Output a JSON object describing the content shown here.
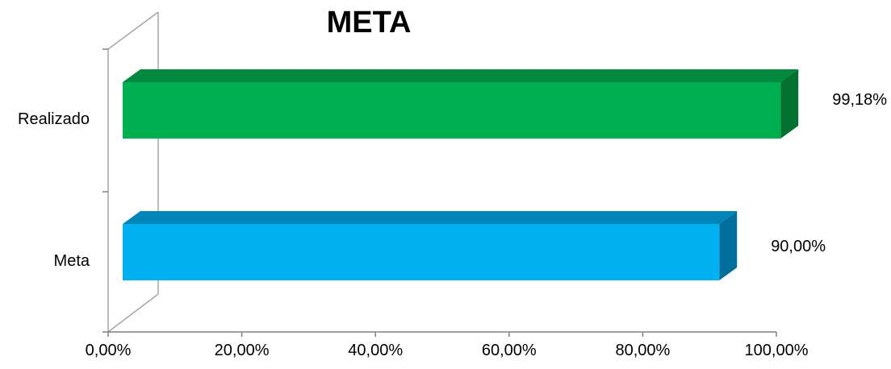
{
  "chart_data": {
    "type": "bar",
    "orientation": "horizontal",
    "three_d": true,
    "title": "META",
    "categories": [
      "Realizado",
      "Meta"
    ],
    "values": [
      99.18,
      90.0
    ],
    "data_labels": [
      "99,18%",
      "90,00%"
    ],
    "xlim": [
      0,
      100
    ],
    "xticks": [
      0,
      20,
      40,
      60,
      80,
      100
    ],
    "xtick_labels": [
      "0,00%",
      "20,00%",
      "40,00%",
      "60,00%",
      "80,00%",
      "100,00%"
    ],
    "xlabel": "",
    "ylabel": "",
    "grid": false,
    "legend": "none",
    "colors": {
      "Realizado": {
        "front": "#00b050",
        "top": "#00893e",
        "side": "#00712f"
      },
      "Meta": {
        "front": "#00b0f0",
        "top": "#0085b8",
        "side": "#006f9e"
      }
    }
  }
}
